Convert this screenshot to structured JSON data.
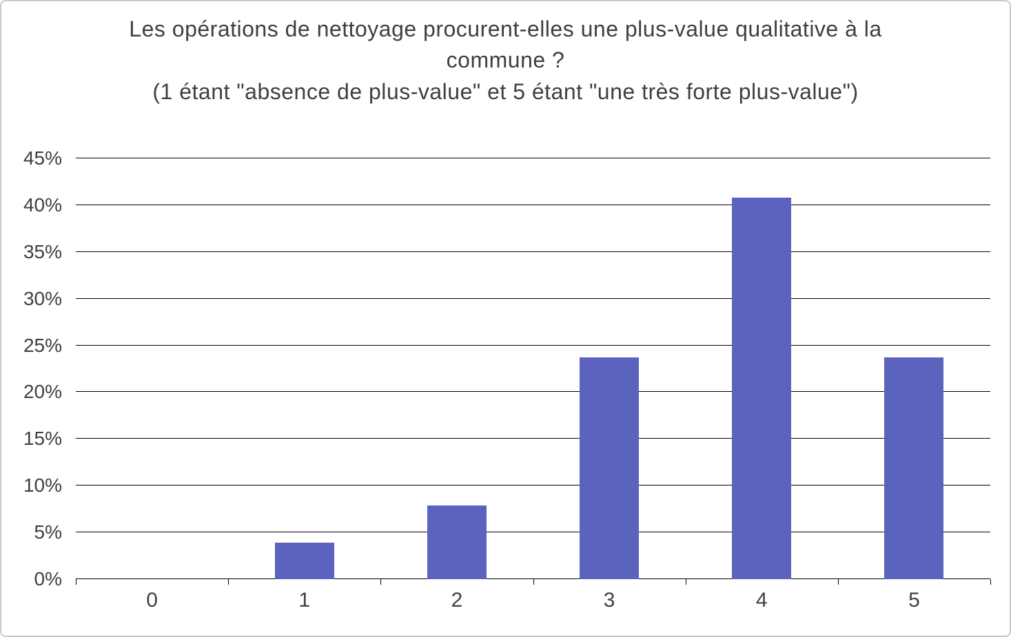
{
  "chart_data": {
    "type": "bar",
    "title": "Les opérations de nettoyage procurent-elles une plus-value qualitative à la commune ?\n(1 étant \"absence de plus-value\" et 5 étant \"une très forte plus-value\")",
    "categories": [
      "0",
      "1",
      "2",
      "3",
      "4",
      "5"
    ],
    "values": [
      0,
      3.9,
      7.9,
      23.7,
      40.8,
      23.7
    ],
    "xlabel": "",
    "ylabel": "",
    "ylim": [
      0,
      45
    ],
    "ytick_step": 5,
    "ytick_labels": [
      "0%",
      "5%",
      "10%",
      "15%",
      "20%",
      "25%",
      "30%",
      "35%",
      "40%",
      "45%"
    ],
    "bar_color": "#5b63be",
    "grid": true,
    "gridline_color": "#000000",
    "legend": "none",
    "frame_border_color": "#c9c9c9"
  }
}
